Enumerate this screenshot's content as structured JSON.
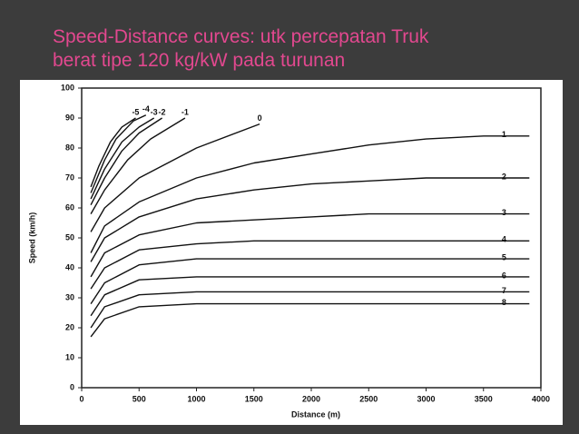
{
  "chart_data": {
    "type": "line",
    "title": [
      "Speed-Distance curves: utk percepatan Truk",
      "berat tipe 120 kg/kW pada turunan"
    ],
    "xlabel": "Distance (m)",
    "ylabel": "Speed (km/h)",
    "xlim": [
      0,
      4000
    ],
    "xticks": [
      0,
      500,
      1000,
      1500,
      2000,
      2500,
      3000,
      3500,
      4000
    ],
    "ylim": [
      0,
      100
    ],
    "yticks": [
      0,
      10,
      20,
      30,
      40,
      50,
      60,
      70,
      80,
      90,
      100
    ],
    "color": "#111111",
    "series": [
      {
        "name": "-5",
        "x": [
          80,
          150,
          250,
          350,
          470
        ],
        "values": [
          67,
          74,
          82,
          87,
          90
        ]
      },
      {
        "name": "-4",
        "x": [
          80,
          200,
          300,
          450,
          560
        ],
        "values": [
          65,
          76,
          83,
          89,
          91
        ]
      },
      {
        "name": "-3",
        "x": [
          80,
          200,
          350,
          500,
          630
        ],
        "values": [
          63,
          73,
          82,
          87,
          90
        ]
      },
      {
        "name": "-2",
        "x": [
          80,
          200,
          350,
          500,
          700
        ],
        "values": [
          61,
          70,
          79,
          85,
          90
        ]
      },
      {
        "name": "-1",
        "x": [
          80,
          200,
          400,
          600,
          900
        ],
        "values": [
          58,
          66,
          76,
          83,
          90
        ]
      },
      {
        "name": "0",
        "x": [
          80,
          200,
          500,
          1000,
          1550
        ],
        "values": [
          52,
          60,
          70,
          80,
          88
        ]
      },
      {
        "name": "1",
        "x": [
          80,
          200,
          500,
          1000,
          1500,
          2000,
          2500,
          3000,
          3500,
          3900
        ],
        "values": [
          45,
          54,
          62,
          70,
          75,
          78,
          81,
          83,
          84,
          84
        ]
      },
      {
        "name": "2",
        "x": [
          80,
          200,
          500,
          1000,
          1500,
          2000,
          2500,
          3000,
          3500,
          3900
        ],
        "values": [
          42,
          50,
          57,
          63,
          66,
          68,
          69,
          70,
          70,
          70
        ]
      },
      {
        "name": "3",
        "x": [
          80,
          200,
          500,
          1000,
          1500,
          2000,
          2500,
          3000,
          3500,
          3900
        ],
        "values": [
          37,
          45,
          51,
          55,
          56,
          57,
          58,
          58,
          58,
          58
        ]
      },
      {
        "name": "4",
        "x": [
          80,
          200,
          500,
          1000,
          1500,
          2000,
          2500,
          3000,
          3500,
          3900
        ],
        "values": [
          33,
          40,
          46,
          48,
          49,
          49,
          49,
          49,
          49,
          49
        ]
      },
      {
        "name": "5",
        "x": [
          80,
          200,
          500,
          1000,
          1500,
          2000,
          2500,
          3000,
          3500,
          3900
        ],
        "values": [
          28,
          35,
          41,
          43,
          43,
          43,
          43,
          43,
          43,
          43
        ]
      },
      {
        "name": "6",
        "x": [
          80,
          200,
          500,
          1000,
          1500,
          2000,
          2500,
          3000,
          3500,
          3900
        ],
        "values": [
          24,
          31,
          36,
          37,
          37,
          37,
          37,
          37,
          37,
          37
        ]
      },
      {
        "name": "7",
        "x": [
          80,
          200,
          500,
          1000,
          1500,
          2000,
          2500,
          3000,
          3500,
          3900
        ],
        "values": [
          20,
          27,
          31,
          32,
          32,
          32,
          32,
          32,
          32,
          32
        ]
      },
      {
        "name": "8",
        "x": [
          80,
          200,
          500,
          1000,
          1500,
          2000,
          2500,
          3000,
          3500,
          3900
        ],
        "values": [
          17,
          23,
          27,
          28,
          28,
          28,
          28,
          28,
          28,
          28
        ]
      }
    ]
  }
}
